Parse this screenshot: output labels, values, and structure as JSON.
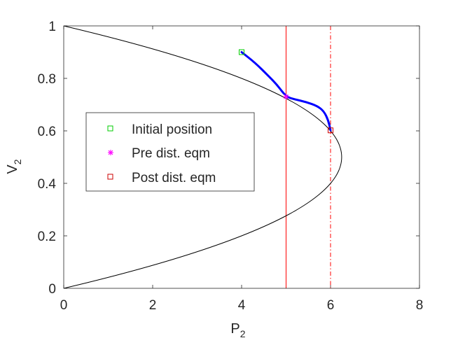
{
  "chart_data": {
    "type": "line",
    "xlabel": "P",
    "xlabel_sub": "2",
    "ylabel": "V",
    "ylabel_sub": "2",
    "xlim": [
      0,
      8
    ],
    "ylim": [
      0,
      1
    ],
    "xticks": [
      0,
      2,
      4,
      6,
      8
    ],
    "yticks": [
      0,
      0.2,
      0.4,
      0.6,
      0.8,
      1
    ],
    "grid": false,
    "legend_position": "left",
    "nose_curve": {
      "color": "#000000",
      "points": [
        [
          0,
          0
        ],
        [
          0.79,
          0.05
        ],
        [
          1.55,
          0.1
        ],
        [
          2.28,
          0.15
        ],
        [
          2.96,
          0.2
        ],
        [
          3.6,
          0.25
        ],
        [
          4.2,
          0.3
        ],
        [
          4.76,
          0.35
        ],
        [
          5.26,
          0.4
        ],
        [
          5.71,
          0.45
        ],
        [
          6.25,
          0.5
        ],
        [
          5.71,
          0.55
        ],
        [
          5.26,
          0.6
        ],
        [
          4.76,
          0.65
        ],
        [
          4.2,
          0.7
        ],
        [
          3.6,
          0.75
        ],
        [
          2.96,
          0.8
        ],
        [
          2.28,
          0.85
        ],
        [
          1.55,
          0.9
        ],
        [
          0.79,
          0.95
        ],
        [
          0,
          1
        ]
      ]
    },
    "vertical_lines": [
      {
        "x": 5,
        "style": "solid",
        "color": "#ff0000"
      },
      {
        "x": 6,
        "style": "dashdot",
        "color": "#ff0000"
      }
    ],
    "trajectory": {
      "color": "#0000ff",
      "points": [
        [
          4.0,
          0.9
        ],
        [
          4.3,
          0.86
        ],
        [
          4.6,
          0.81
        ],
        [
          4.8,
          0.775
        ],
        [
          5.0,
          0.73
        ],
        [
          5.2,
          0.72
        ],
        [
          5.45,
          0.71
        ],
        [
          5.7,
          0.695
        ],
        [
          5.85,
          0.675
        ],
        [
          5.95,
          0.64
        ],
        [
          6.0,
          0.602
        ]
      ]
    },
    "markers": [
      {
        "label": "Initial position",
        "x": 4.0,
        "y": 0.9,
        "shape": "square",
        "color": "#00cc00"
      },
      {
        "label": "Pre dist. eqm",
        "x": 5.0,
        "y": 0.73,
        "shape": "asterisk",
        "color": "#ff00ff"
      },
      {
        "label": "Post dist. eqm",
        "x": 6.0,
        "y": 0.602,
        "shape": "square",
        "color": "#cc0000"
      }
    ],
    "legend": [
      "Initial position",
      "Pre dist. eqm",
      "Post dist. eqm"
    ]
  }
}
